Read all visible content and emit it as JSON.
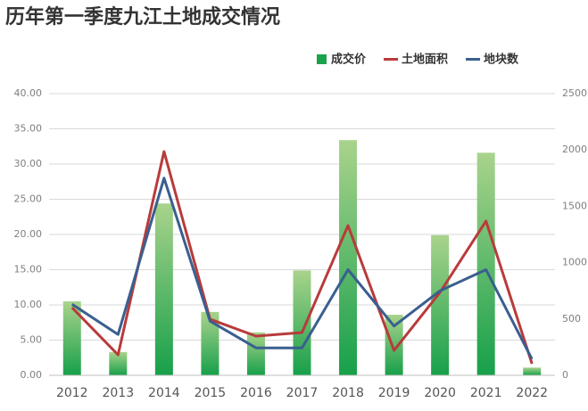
{
  "chart_data": {
    "type": "bar",
    "title": "历年第一季度九江土地成交情况",
    "categories": [
      "2012",
      "2013",
      "2014",
      "2015",
      "2016",
      "2017",
      "2018",
      "2019",
      "2020",
      "2021",
      "2022"
    ],
    "series": [
      {
        "name": "成交价",
        "type": "bar",
        "color": "#1aa34a",
        "values": [
          10.5,
          3.3,
          24.4,
          9.0,
          6.1,
          14.9,
          33.4,
          8.6,
          19.9,
          31.6,
          1.1
        ]
      },
      {
        "name": "土地面积",
        "type": "line",
        "axis": "y2",
        "color": "#b83b3b",
        "values": [
          601,
          182,
          1986,
          498,
          348,
          380,
          1329,
          221,
          736,
          1369,
          103
        ]
      },
      {
        "name": "地块数",
        "type": "line",
        "color": "#3a5f8f",
        "values": [
          10.1,
          5.8,
          28.0,
          7.7,
          3.9,
          3.9,
          15.0,
          7.0,
          12.0,
          15.0,
          2.3
        ]
      }
    ],
    "ylim": [
      0,
      40
    ],
    "yticks": [
      {
        "value": 0,
        "label": "0.00"
      },
      {
        "value": 5,
        "label": "5.00"
      },
      {
        "value": 10,
        "label": "10.00"
      },
      {
        "value": 15,
        "label": "15.00"
      },
      {
        "value": 20,
        "label": "20.00"
      },
      {
        "value": 25,
        "label": "25.00"
      },
      {
        "value": 30,
        "label": "30.00"
      },
      {
        "value": 35,
        "label": "35.00"
      },
      {
        "value": 40,
        "label": "40.00"
      }
    ],
    "y2lim": [
      0,
      2500
    ],
    "y2ticks": [
      0,
      500,
      1000,
      1500,
      2000,
      2500
    ],
    "grid": true
  }
}
